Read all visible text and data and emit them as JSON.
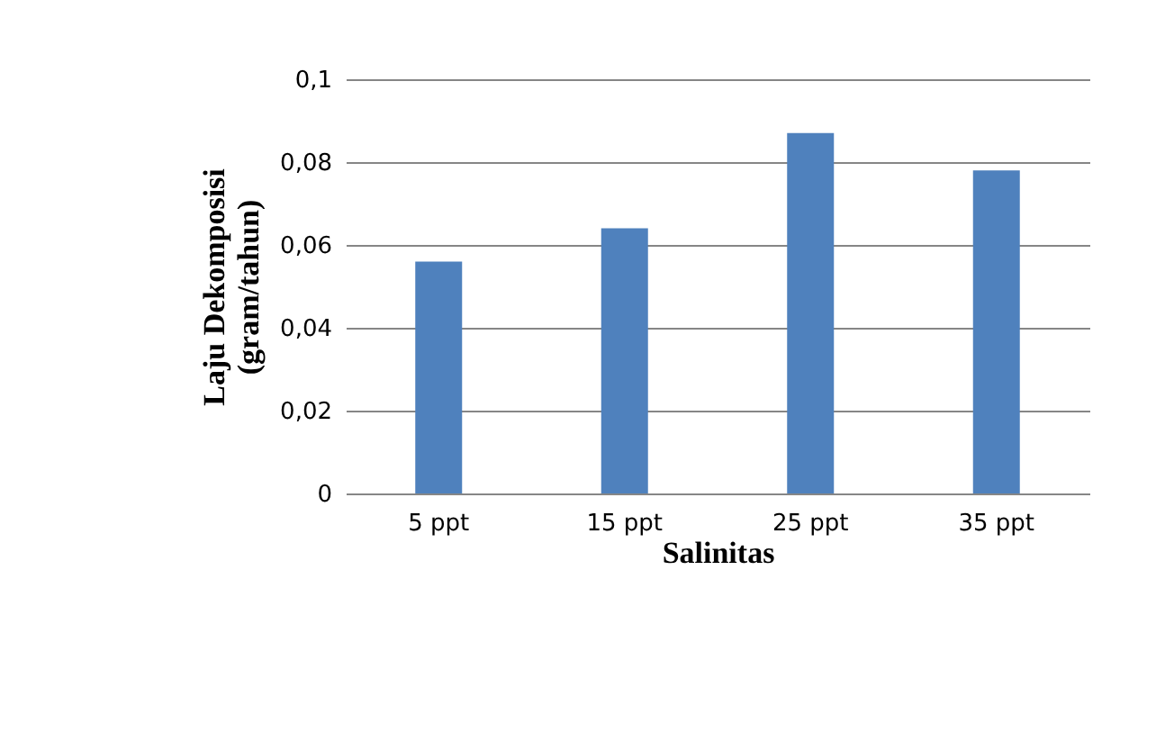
{
  "chart_data": {
    "type": "bar",
    "xlabel": "Salinitas",
    "ylabel": "Laju Dekomposisi\n(gram/tahun)",
    "categories": [
      "5 ppt",
      "15 ppt",
      "25 ppt",
      "35 ppt"
    ],
    "values": [
      0.056,
      0.064,
      0.087,
      0.078
    ],
    "color": "#4f81bd",
    "ylim": [
      0,
      0.1
    ],
    "yticks": [
      {
        "value": 0,
        "label": "0"
      },
      {
        "value": 0.02,
        "label": "0,02"
      },
      {
        "value": 0.04,
        "label": "0,04"
      },
      {
        "value": 0.06,
        "label": "0,06"
      },
      {
        "value": 0.08,
        "label": "0,08"
      },
      {
        "value": 0.1,
        "label": "0,1"
      }
    ],
    "grid": "y"
  }
}
